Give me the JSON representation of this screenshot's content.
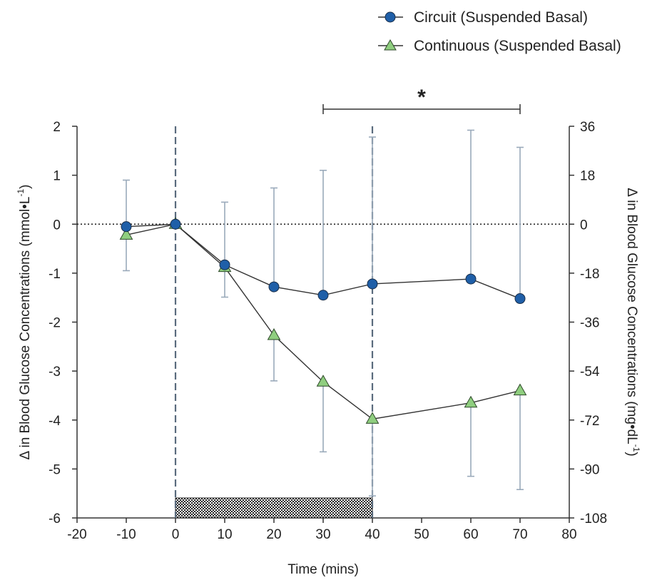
{
  "chart_data": {
    "type": "line",
    "title": "",
    "xlabel": "Time (mins)",
    "ylabel_left": "Δ in Blood Glucose Concentrations (mmol•L",
    "ylabel_left_sup": "-1",
    "ylabel_left_close": ")",
    "ylabel_right": "Δ in Blood Glucose Concentrations (mg•dL",
    "ylabel_right_sup": "-1",
    "ylabel_right_close": ")",
    "xlim": [
      -20,
      80
    ],
    "ylim_left": [
      -6,
      2
    ],
    "ylim_right": [
      -108,
      36
    ],
    "xticks": [
      -20,
      -10,
      0,
      10,
      20,
      30,
      40,
      50,
      60,
      70,
      80
    ],
    "xtick_labels": [
      "-20",
      "-10",
      "0",
      "10",
      "20",
      "30",
      "40",
      "50",
      "60",
      "70",
      "80"
    ],
    "yticks_left": [
      2,
      1,
      0,
      -1,
      -2,
      -3,
      -4,
      -5,
      -6
    ],
    "ytick_labels_left": [
      "2",
      "1",
      "0",
      "-1",
      "-2",
      "-3",
      "-4",
      "-5",
      "-6"
    ],
    "yticks_right": [
      36,
      18,
      0,
      -18,
      -36,
      -54,
      -72,
      -90,
      -108
    ],
    "ytick_labels_right": [
      "36",
      "18",
      "0",
      "-18",
      "-36",
      "-54",
      "-72",
      "-90",
      "-108"
    ],
    "grid": false,
    "legend_position": "top-right",
    "reference_line_y": 0,
    "vertical_dashed_lines_x": [
      0,
      40
    ],
    "exercise_bar_x": [
      0,
      40
    ],
    "significance": {
      "x_range": [
        30,
        70
      ],
      "label": "*"
    },
    "series": [
      {
        "name": "Circuit (Suspended Basal)",
        "marker": "circle",
        "color": "#1f5fa8",
        "x": [
          -10,
          0,
          10,
          20,
          30,
          40,
          60,
          70
        ],
        "y": [
          -0.05,
          0.0,
          -0.83,
          -1.28,
          -1.45,
          -1.22,
          -1.12,
          -1.52
        ],
        "error_upper": [
          0.9,
          0.0,
          0.45,
          0.74,
          1.1,
          1.78,
          1.92,
          1.57
        ],
        "error_lower": [
          null,
          null,
          null,
          null,
          null,
          null,
          null,
          null
        ]
      },
      {
        "name": "Continuous (Suspended Basal)",
        "marker": "triangle",
        "color": "#8fce7f",
        "x": [
          -10,
          0,
          10,
          20,
          30,
          40,
          60,
          70
        ],
        "y": [
          -0.22,
          0.0,
          -0.88,
          -2.27,
          -3.22,
          -3.98,
          -3.65,
          -3.4
        ],
        "error_upper": [
          null,
          null,
          null,
          null,
          null,
          null,
          null,
          null
        ],
        "error_lower": [
          -0.95,
          0.0,
          -1.49,
          -3.2,
          -4.65,
          -5.55,
          -5.15,
          -5.42
        ]
      }
    ],
    "colors": {
      "axis": "#333333",
      "error_bar": "#9aaabb",
      "dashed_line": "#5a6b7d",
      "line": "#333333"
    }
  }
}
